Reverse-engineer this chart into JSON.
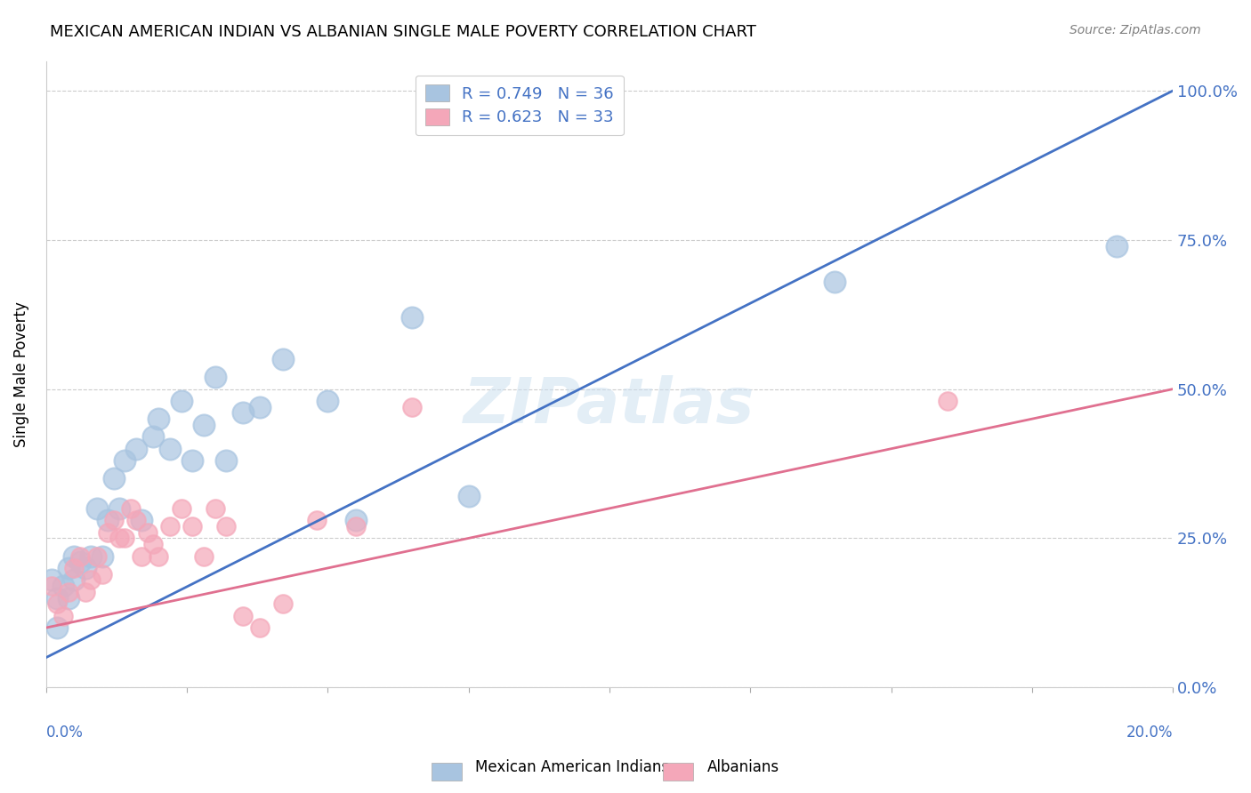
{
  "title": "MEXICAN AMERICAN INDIAN VS ALBANIAN SINGLE MALE POVERTY CORRELATION CHART",
  "source": "Source: ZipAtlas.com",
  "ylabel": "Single Male Poverty",
  "legend_blue_label": "Mexican American Indians",
  "legend_pink_label": "Albanians",
  "legend_blue_r": "R = 0.749",
  "legend_blue_n": "N = 36",
  "legend_pink_r": "R = 0.623",
  "legend_pink_n": "N = 33",
  "blue_color": "#a8c4e0",
  "blue_line_color": "#4472c4",
  "pink_color": "#f4a7b9",
  "pink_line_color": "#e07090",
  "watermark": "ZIPatlas",
  "blue_line_x0": 0.0,
  "blue_line_y0": 0.05,
  "blue_line_x1": 0.2,
  "blue_line_y1": 1.0,
  "pink_line_x0": 0.0,
  "pink_line_y0": 0.1,
  "pink_line_x1": 0.2,
  "pink_line_y1": 0.5,
  "blue_dots_x": [
    0.001,
    0.002,
    0.002,
    0.003,
    0.004,
    0.004,
    0.005,
    0.005,
    0.006,
    0.007,
    0.008,
    0.009,
    0.01,
    0.011,
    0.012,
    0.013,
    0.014,
    0.016,
    0.017,
    0.019,
    0.02,
    0.022,
    0.024,
    0.026,
    0.028,
    0.03,
    0.032,
    0.035,
    0.038,
    0.042,
    0.05,
    0.055,
    0.065,
    0.075,
    0.14,
    0.19
  ],
  "blue_dots_y": [
    0.18,
    0.15,
    0.1,
    0.17,
    0.2,
    0.15,
    0.22,
    0.18,
    0.21,
    0.2,
    0.22,
    0.3,
    0.22,
    0.28,
    0.35,
    0.3,
    0.38,
    0.4,
    0.28,
    0.42,
    0.45,
    0.4,
    0.48,
    0.38,
    0.44,
    0.52,
    0.38,
    0.46,
    0.47,
    0.55,
    0.48,
    0.28,
    0.62,
    0.32,
    0.68,
    0.74
  ],
  "pink_dots_x": [
    0.001,
    0.002,
    0.003,
    0.004,
    0.005,
    0.006,
    0.007,
    0.008,
    0.009,
    0.01,
    0.011,
    0.012,
    0.013,
    0.014,
    0.015,
    0.016,
    0.017,
    0.018,
    0.019,
    0.02,
    0.022,
    0.024,
    0.026,
    0.028,
    0.03,
    0.032,
    0.035,
    0.038,
    0.042,
    0.048,
    0.055,
    0.065,
    0.16
  ],
  "pink_dots_y": [
    0.17,
    0.14,
    0.12,
    0.16,
    0.2,
    0.22,
    0.16,
    0.18,
    0.22,
    0.19,
    0.26,
    0.28,
    0.25,
    0.25,
    0.3,
    0.28,
    0.22,
    0.26,
    0.24,
    0.22,
    0.27,
    0.3,
    0.27,
    0.22,
    0.3,
    0.27,
    0.12,
    0.1,
    0.14,
    0.28,
    0.27,
    0.47,
    0.48
  ],
  "xlim": [
    0,
    0.2
  ],
  "ylim": [
    0,
    1.05
  ],
  "ytick_vals": [
    0,
    0.25,
    0.5,
    0.75,
    1.0
  ],
  "ytick_labels": [
    "0.0%",
    "25.0%",
    "50.0%",
    "75.0%",
    "100.0%"
  ],
  "xtick_vals": [
    0.0,
    0.025,
    0.05,
    0.075,
    0.1,
    0.125,
    0.15,
    0.175,
    0.2
  ]
}
